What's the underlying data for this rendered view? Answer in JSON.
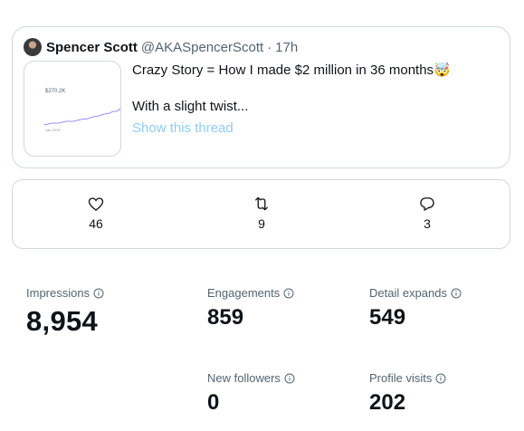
{
  "tweet": {
    "author_name": "Spencer Scott",
    "handle": "@AKASpencerScott",
    "separator": "·",
    "time": "17h",
    "line1": "Crazy Story = How I made $2 million in 36 months🤯",
    "line2": "With a slight twist...",
    "show_thread": "Show this thread",
    "thumbnail": {
      "value_label": "$270.2K",
      "axis_label": "Jan 2019",
      "line_color": "#7b6cf6"
    }
  },
  "actions": {
    "likes": "46",
    "retweets": "9",
    "replies": "3",
    "like_icon": "heart-icon",
    "retweet_icon": "retweet-icon",
    "reply_icon": "reply-icon"
  },
  "metrics": {
    "impressions": {
      "label": "Impressions",
      "value": "8,954"
    },
    "engagements": {
      "label": "Engagements",
      "value": "859"
    },
    "detail_expands": {
      "label": "Detail expands",
      "value": "549"
    },
    "new_followers": {
      "label": "New followers",
      "value": "0"
    },
    "profile_visits": {
      "label": "Profile visits",
      "value": "202"
    },
    "info_icon": "info-icon"
  }
}
